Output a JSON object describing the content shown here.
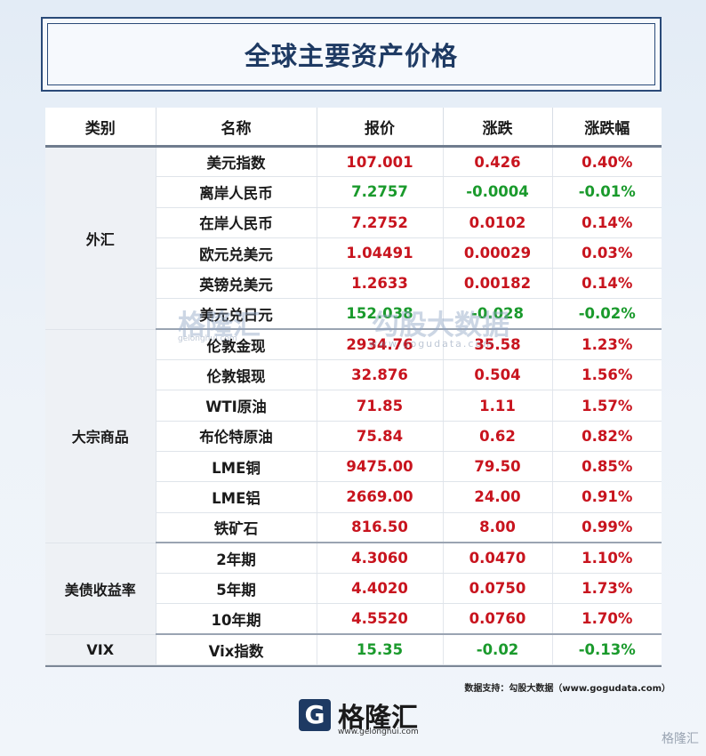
{
  "title": "全球主要资产价格",
  "headers": [
    "类别",
    "名称",
    "报价",
    "涨跌",
    "涨跌幅"
  ],
  "colors": {
    "up": "#c8141e",
    "down": "#1a9a2c",
    "title": "#1e3a63"
  },
  "groups": [
    {
      "category": "外汇",
      "rows": [
        {
          "name": "美元指数",
          "price": "107.001",
          "change": "0.426",
          "pct": "0.40%",
          "dir": "up"
        },
        {
          "name": "离岸人民币",
          "price": "7.2757",
          "change": "-0.0004",
          "pct": "-0.01%",
          "dir": "down"
        },
        {
          "name": "在岸人民币",
          "price": "7.2752",
          "change": "0.0102",
          "pct": "0.14%",
          "dir": "up"
        },
        {
          "name": "欧元兑美元",
          "price": "1.04491",
          "change": "0.00029",
          "pct": "0.03%",
          "dir": "up"
        },
        {
          "name": "英镑兑美元",
          "price": "1.2633",
          "change": "0.00182",
          "pct": "0.14%",
          "dir": "up"
        },
        {
          "name": "美元兑日元",
          "price": "152.038",
          "change": "-0.028",
          "pct": "-0.02%",
          "dir": "down"
        }
      ]
    },
    {
      "category": "大宗商品",
      "rows": [
        {
          "name": "伦敦金现",
          "price": "2934.76",
          "change": "35.58",
          "pct": "1.23%",
          "dir": "up"
        },
        {
          "name": "伦敦银现",
          "price": "32.876",
          "change": "0.504",
          "pct": "1.56%",
          "dir": "up"
        },
        {
          "name": "WTI原油",
          "price": "71.85",
          "change": "1.11",
          "pct": "1.57%",
          "dir": "up"
        },
        {
          "name": "布伦特原油",
          "price": "75.84",
          "change": "0.62",
          "pct": "0.82%",
          "dir": "up"
        },
        {
          "name": "LME铜",
          "price": "9475.00",
          "change": "79.50",
          "pct": "0.85%",
          "dir": "up"
        },
        {
          "name": "LME铝",
          "price": "2669.00",
          "change": "24.00",
          "pct": "0.91%",
          "dir": "up"
        },
        {
          "name": "铁矿石",
          "price": "816.50",
          "change": "8.00",
          "pct": "0.99%",
          "dir": "up"
        }
      ]
    },
    {
      "category": "美债收益率",
      "rows": [
        {
          "name": "2年期",
          "price": "4.3060",
          "change": "0.0470",
          "pct": "1.10%",
          "dir": "up"
        },
        {
          "name": "5年期",
          "price": "4.4020",
          "change": "0.0750",
          "pct": "1.73%",
          "dir": "up"
        },
        {
          "name": "10年期",
          "price": "4.5520",
          "change": "0.0760",
          "pct": "1.70%",
          "dir": "up"
        }
      ]
    },
    {
      "category": "VIX",
      "rows": [
        {
          "name": "Vix指数",
          "price": "15.35",
          "change": "-0.02",
          "pct": "-0.13%",
          "dir": "down"
        }
      ]
    }
  ],
  "source": "数据支持：勾股大数据（www.gogudata.com）",
  "watermark": {
    "brand": "格隆汇",
    "brand_url": "gelonghui.com",
    "partner": "勾股大数据",
    "partner_url": "www.gogudata.com"
  },
  "logo": {
    "mark": "G",
    "name": "格隆汇",
    "url": "www.gelonghui.com"
  },
  "corner_mark": "格隆汇"
}
